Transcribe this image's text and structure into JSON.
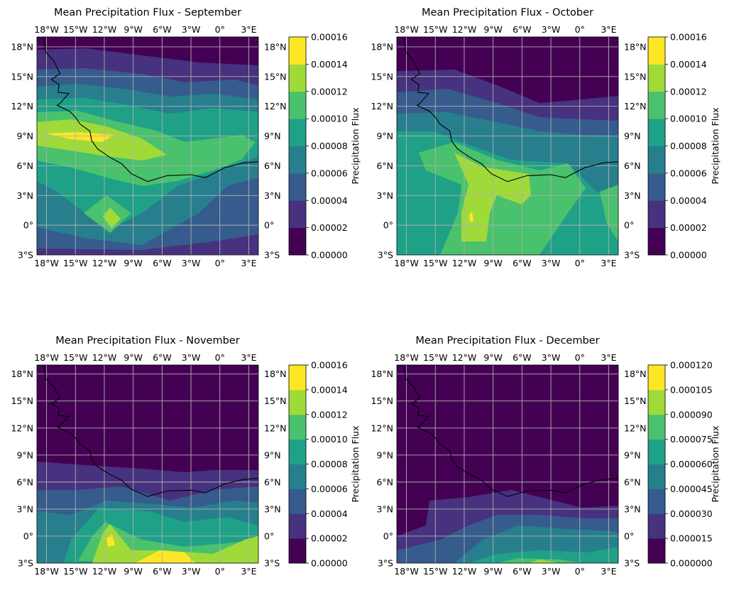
{
  "figure": {
    "colormap": [
      "#440154",
      "#46327e",
      "#365c8d",
      "#277f8e",
      "#1fa187",
      "#4ac16d",
      "#a0da39",
      "#fde725"
    ],
    "coastline_color": "#000000",
    "grid_color": "#b0b0b0",
    "lon_range": [
      -19,
      4
    ],
    "lat_range": [
      -3,
      19
    ]
  },
  "panels": [
    {
      "id": "september",
      "title": "Mean Precipitation Flux - September",
      "colorbar_label": "Precipitation Flux",
      "colorbar_ticks": [
        "0.00000",
        "0.00002",
        "0.00004",
        "0.00006",
        "0.00008",
        "0.00010",
        "0.00012",
        "0.00014",
        "0.00016"
      ],
      "colorbar_levels": [
        0,
        2e-05,
        4e-05,
        6e-05,
        8e-05,
        0.0001,
        0.00012,
        0.00014,
        0.00016
      ],
      "lon_ticks": [
        -18,
        -15,
        -12,
        -9,
        -6,
        -3,
        0,
        3
      ],
      "lon_labels": [
        "18°W",
        "15°W",
        "12°W",
        "9°W",
        "6°W",
        "3°W",
        "0°",
        "3°E"
      ],
      "lat_ticks": [
        18,
        15,
        12,
        9,
        6,
        3,
        0,
        -3
      ],
      "lat_labels": [
        "18°N",
        "15°N",
        "12°N",
        "9°N",
        "6°N",
        "3°N",
        "0°",
        "3°S"
      ]
    },
    {
      "id": "october",
      "title": "Mean Precipitation Flux - October",
      "colorbar_label": "Precipitation Flux",
      "colorbar_ticks": [
        "0.00000",
        "0.00002",
        "0.00004",
        "0.00006",
        "0.00008",
        "0.00010",
        "0.00012",
        "0.00014",
        "0.00016"
      ],
      "colorbar_levels": [
        0,
        2e-05,
        4e-05,
        6e-05,
        8e-05,
        0.0001,
        0.00012,
        0.00014,
        0.00016
      ],
      "lon_ticks": [
        -18,
        -15,
        -12,
        -9,
        -6,
        -3,
        0,
        3
      ],
      "lon_labels": [
        "18°W",
        "15°W",
        "12°W",
        "9°W",
        "6°W",
        "3°W",
        "0°",
        "3°E"
      ],
      "lat_ticks": [
        18,
        15,
        12,
        9,
        6,
        3,
        0,
        -3
      ],
      "lat_labels": [
        "18°N",
        "15°N",
        "12°N",
        "9°N",
        "6°N",
        "3°N",
        "0°",
        "3°S"
      ]
    },
    {
      "id": "november",
      "title": "Mean Precipitation Flux - November",
      "colorbar_label": "Precipitation Flux",
      "colorbar_ticks": [
        "0.00000",
        "0.00002",
        "0.00004",
        "0.00006",
        "0.00008",
        "0.00010",
        "0.00012",
        "0.00014",
        "0.00016"
      ],
      "colorbar_levels": [
        0,
        2e-05,
        4e-05,
        6e-05,
        8e-05,
        0.0001,
        0.00012,
        0.00014,
        0.00016
      ],
      "lon_ticks": [
        -18,
        -15,
        -12,
        -9,
        -6,
        -3,
        0,
        3
      ],
      "lon_labels": [
        "18°W",
        "15°W",
        "12°W",
        "9°W",
        "6°W",
        "3°W",
        "0°",
        "3°E"
      ],
      "lat_ticks": [
        18,
        15,
        12,
        9,
        6,
        3,
        0,
        -3
      ],
      "lat_labels": [
        "18°N",
        "15°N",
        "12°N",
        "9°N",
        "6°N",
        "3°N",
        "0°",
        "3°S"
      ]
    },
    {
      "id": "december",
      "title": "Mean Precipitation Flux - December",
      "colorbar_label": "Precipitation Flux",
      "colorbar_ticks": [
        "0.000000",
        "0.000015",
        "0.000030",
        "0.000045",
        "0.000060",
        "0.000075",
        "0.000090",
        "0.000105",
        "0.000120"
      ],
      "colorbar_levels": [
        0,
        1.5e-05,
        3e-05,
        4.5e-05,
        6e-05,
        7.5e-05,
        9e-05,
        0.000105,
        0.00012
      ],
      "lon_ticks": [
        -18,
        -15,
        -12,
        -9,
        -6,
        -3,
        0,
        3
      ],
      "lon_labels": [
        "18°W",
        "15°W",
        "12°W",
        "9°W",
        "6°W",
        "3°W",
        "0°",
        "3°E"
      ],
      "lat_ticks": [
        18,
        15,
        12,
        9,
        6,
        3,
        0,
        -3
      ],
      "lat_labels": [
        "18°N",
        "15°N",
        "12°N",
        "9°N",
        "6°N",
        "3°N",
        "0°",
        "3°S"
      ]
    }
  ],
  "coastline": [
    [
      -18.3,
      19
    ],
    [
      -18.1,
      17.5
    ],
    [
      -17.2,
      16.5
    ],
    [
      -16.6,
      15.3
    ],
    [
      -17.5,
      14.7
    ],
    [
      -16.7,
      14.2
    ],
    [
      -16.8,
      13.4
    ],
    [
      -15.7,
      13.3
    ],
    [
      -16.6,
      12.3
    ],
    [
      -16.9,
      12.1
    ],
    [
      -15.6,
      11.5
    ],
    [
      -15.0,
      10.9
    ],
    [
      -14.5,
      10.2
    ],
    [
      -13.5,
      9.5
    ],
    [
      -13.3,
      8.5
    ],
    [
      -12.7,
      7.7
    ],
    [
      -11.5,
      6.9
    ],
    [
      -10.2,
      6.2
    ],
    [
      -9.2,
      5.2
    ],
    [
      -7.5,
      4.4
    ],
    [
      -5.5,
      5.0
    ],
    [
      -3.0,
      5.1
    ],
    [
      -1.5,
      4.8
    ],
    [
      0.5,
      5.8
    ],
    [
      2.5,
      6.3
    ],
    [
      4,
      6.4
    ]
  ]
}
